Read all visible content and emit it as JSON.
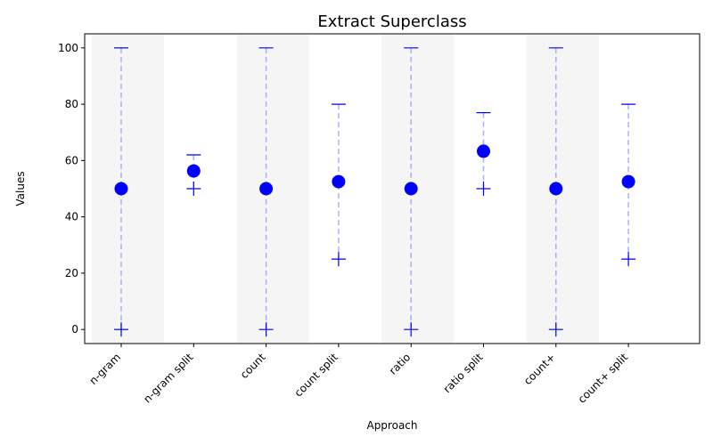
{
  "chart_data": {
    "type": "scatter",
    "title": "Extract Superclass",
    "xlabel": "Approach",
    "ylabel": "Values",
    "categories": [
      "n-gram",
      "n-gram split",
      "count",
      "count split",
      "ratio",
      "ratio split",
      "count+",
      "count+ split"
    ],
    "mean": [
      50,
      56.3,
      50,
      52.5,
      50,
      63.3,
      50,
      52.5
    ],
    "min": [
      0,
      50,
      0,
      25,
      0,
      50,
      0,
      25
    ],
    "max": [
      100,
      62,
      100,
      80,
      100,
      77,
      100,
      80
    ],
    "shaded_categories": [
      "n-gram",
      "count",
      "ratio",
      "count+"
    ],
    "ylim": [
      -5,
      105
    ],
    "yticks": [
      0,
      20,
      40,
      60,
      80,
      100
    ],
    "grid": false,
    "marker_color": "#0000ff",
    "range_line_color": "#9999ff",
    "shade_color": "#f5f5f5"
  }
}
